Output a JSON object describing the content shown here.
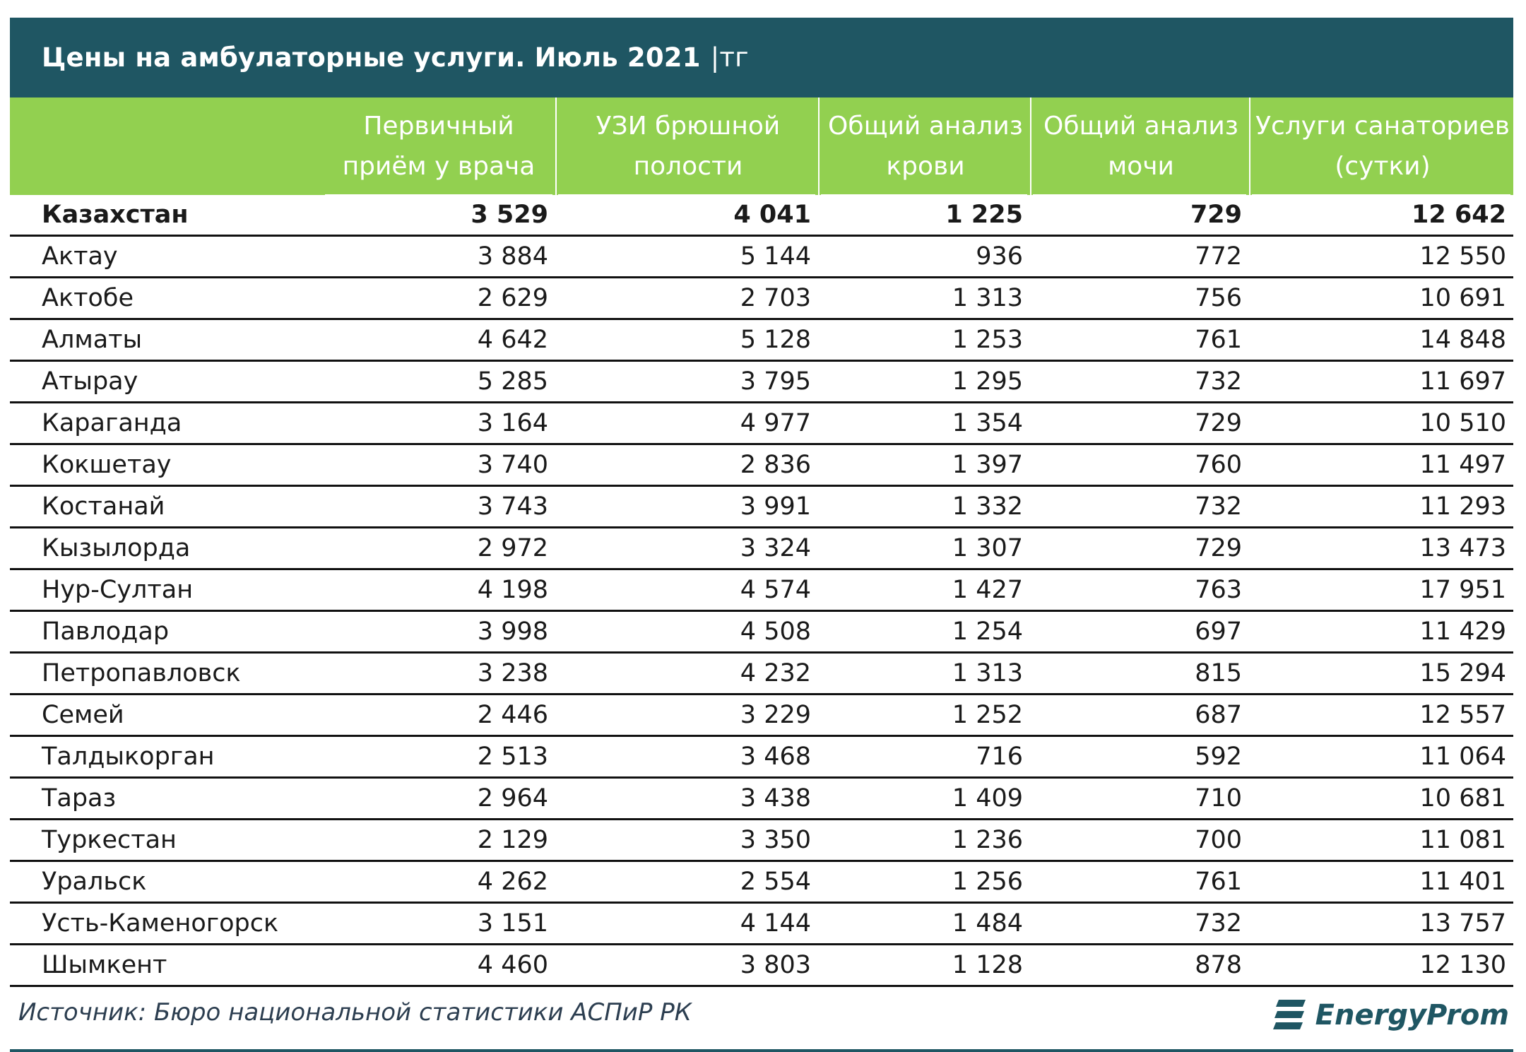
{
  "title": "Цены на амбулаторные услуги. Июль 2021",
  "unit": "|тг",
  "columns": [
    "",
    "Первичный приём у врача",
    "УЗИ брюшной полости",
    "Общий анализ крови",
    "Общий анализ мочи",
    "Услуги санаториев (сутки)"
  ],
  "header_lines": [
    [
      "Первичный",
      "приём у врача"
    ],
    [
      "УЗИ брюшной",
      "полости"
    ],
    [
      "Общий анализ",
      "крови"
    ],
    [
      "Общий анализ",
      "мочи"
    ],
    [
      "Услуги санаториев",
      "(сутки)"
    ]
  ],
  "rows": [
    [
      "Казахстан",
      "3 529",
      "4 041",
      "1 225",
      "729",
      "12 642"
    ],
    [
      "Актау",
      "3 884",
      "5 144",
      "936",
      "772",
      "12 550"
    ],
    [
      "Актобе",
      "2 629",
      "2 703",
      "1 313",
      "756",
      "10 691"
    ],
    [
      "Алматы",
      "4 642",
      "5 128",
      "1 253",
      "761",
      "14 848"
    ],
    [
      "Атырау",
      "5 285",
      "3 795",
      "1 295",
      "732",
      "11 697"
    ],
    [
      "Караганда",
      "3 164",
      "4 977",
      "1 354",
      "729",
      "10 510"
    ],
    [
      "Кокшетау",
      "3 740",
      "2 836",
      "1 397",
      "760",
      "11 497"
    ],
    [
      "Костанай",
      "3 743",
      "3 991",
      "1 332",
      "732",
      "11 293"
    ],
    [
      "Кызылорда",
      "2 972",
      "3 324",
      "1 307",
      "729",
      "13 473"
    ],
    [
      "Нур-Султан",
      "4 198",
      "4 574",
      "1 427",
      "763",
      "17 951"
    ],
    [
      "Павлодар",
      "3 998",
      "4 508",
      "1 254",
      "697",
      "11 429"
    ],
    [
      "Петропавловск",
      "3 238",
      "4 232",
      "1 313",
      "815",
      "15 294"
    ],
    [
      "Семей",
      "2 446",
      "3 229",
      "1 252",
      "687",
      "12 557"
    ],
    [
      "Талдыкорган",
      "2 513",
      "3 468",
      "716",
      "592",
      "11 064"
    ],
    [
      "Тараз",
      "2 964",
      "3 438",
      "1 409",
      "710",
      "10 681"
    ],
    [
      "Туркестан",
      "2 129",
      "3 350",
      "1 236",
      "700",
      "11 081"
    ],
    [
      "Уральск",
      "4 262",
      "2 554",
      "1 256",
      "761",
      "11 401"
    ],
    [
      "Усть-Каменогорск",
      "3 151",
      "4 144",
      "1 484",
      "732",
      "13 757"
    ],
    [
      "Шымкент",
      "4 460",
      "3 803",
      "1 128",
      "878",
      "12 130"
    ]
  ],
  "source": "Источник: Бюро национальной статистики АСПиР РК",
  "logo": "EnergyProm",
  "colors": {
    "title_bg": "#1f5663",
    "header_bg": "#92d050",
    "text": "#1a1a1a"
  }
}
